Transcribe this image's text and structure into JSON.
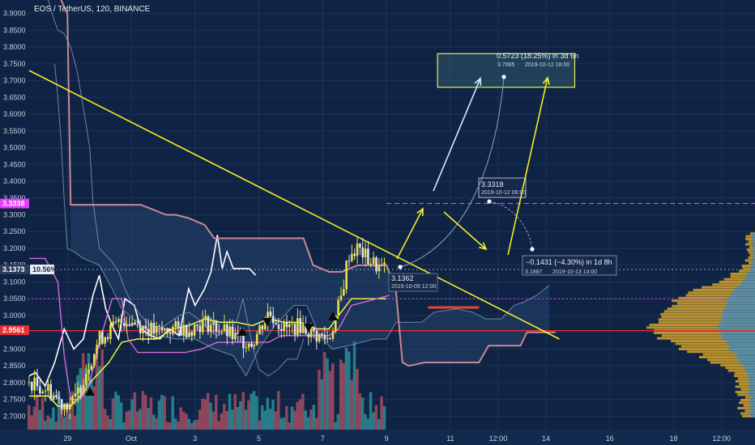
{
  "header": {
    "symbol_title": "EOS / TetherUS, 120, BINANCE"
  },
  "colors": {
    "background": "#0f2344",
    "grid": "#1c3358",
    "candle_up": "#e8df4a",
    "candle_down": "#dfe3ea",
    "price_line": "#ffffff",
    "tenkan": "#ffff44",
    "kijun": "#d86bd8",
    "span_b": "#c78a92",
    "cloud_edge": "#8ea6bf",
    "trendline": "#f4ec2a",
    "volume_up": "#2a8c95",
    "volume_down": "#a34b5f",
    "support_red": "#e83030",
    "magenta_level": "#d640f2",
    "profile_gold": "#d6a52b",
    "profile_blue": "#3a8fd0"
  },
  "chart_data": {
    "type": "line",
    "title": "EOS / TetherUS, 120, BINANCE",
    "ylim": [
      2.66,
      3.94
    ],
    "y_ticks": [
      "3.9000",
      "3.8500",
      "3.8000",
      "3.7500",
      "3.7000",
      "3.6500",
      "3.6000",
      "3.5500",
      "3.5000",
      "3.4500",
      "3.4000",
      "3.3500",
      "3.3000",
      "3.2500",
      "3.2000",
      "3.1500",
      "3.1000",
      "3.0500",
      "3.0000",
      "2.9500",
      "2.9000",
      "2.8500",
      "2.8000",
      "2.7500",
      "2.7000"
    ],
    "y_tick_values": [
      3.9,
      3.85,
      3.8,
      3.75,
      3.7,
      3.65,
      3.6,
      3.55,
      3.5,
      3.45,
      3.4,
      3.35,
      3.3,
      3.25,
      3.2,
      3.15,
      3.1,
      3.05,
      3.0,
      2.95,
      2.9,
      2.85,
      2.8,
      2.75,
      2.7
    ],
    "x_ticks": [
      "29",
      "Oct",
      "3",
      "5",
      "7",
      "9",
      "11",
      "12:00",
      "14",
      "16",
      "18",
      "12:00"
    ],
    "x_tick_days": [
      -2,
      0,
      2,
      4,
      6,
      8,
      10,
      11.5,
      13,
      15,
      17,
      18.5
    ],
    "xlim_days": [
      -3.25,
      19.55
    ],
    "price_labels": [
      {
        "text": "3.3338",
        "value": 3.3338,
        "color": "#e040fb"
      },
      {
        "text": "3.1373",
        "value": 3.1373,
        "color": "#2a3d5c"
      },
      {
        "text": "2.9561",
        "value": 2.9561,
        "color": "#e83030"
      }
    ],
    "current_pct_label": "10.56%",
    "series": [
      {
        "name": "",
        "role": "close-line",
        "points": [
          [
            -3.2,
            2.82
          ],
          [
            -3.0,
            2.83
          ],
          [
            -2.7,
            2.79
          ],
          [
            -2.4,
            2.86
          ],
          [
            -2.1,
            2.96
          ],
          [
            -1.8,
            2.9
          ],
          [
            -1.5,
            2.93
          ],
          [
            -1.2,
            3.06
          ],
          [
            -1.0,
            3.12
          ],
          [
            -0.8,
            3.02
          ],
          [
            -0.6,
            2.97
          ],
          [
            -0.4,
            2.93
          ],
          [
            -0.2,
            3.05
          ],
          [
            0.1,
            3.03
          ],
          [
            0.3,
            2.96
          ],
          [
            0.6,
            2.94
          ],
          [
            0.9,
            2.93
          ],
          [
            1.2,
            2.96
          ],
          [
            1.5,
            2.94
          ],
          [
            1.8,
            3.08
          ],
          [
            2.0,
            3.03
          ],
          [
            2.3,
            3.08
          ],
          [
            2.5,
            3.13
          ],
          [
            2.7,
            3.24
          ],
          [
            2.85,
            3.14
          ],
          [
            3.0,
            3.19
          ],
          [
            3.2,
            3.14
          ],
          [
            3.4,
            3.14
          ],
          [
            3.7,
            3.14
          ],
          [
            3.9,
            3.12
          ]
        ]
      },
      {
        "name": "",
        "role": "tenkan",
        "points": [
          [
            -3.2,
            2.76
          ],
          [
            -2.6,
            2.76
          ],
          [
            -2.3,
            2.73
          ],
          [
            -1.9,
            2.73
          ],
          [
            -1.6,
            2.76
          ],
          [
            -1.2,
            2.81
          ],
          [
            -0.7,
            2.86
          ],
          [
            -0.3,
            2.92
          ],
          [
            0.2,
            2.93
          ],
          [
            0.8,
            2.93
          ],
          [
            1.3,
            2.96
          ],
          [
            1.8,
            2.97
          ],
          [
            2.3,
            2.99
          ],
          [
            2.8,
            2.98
          ],
          [
            3.3,
            2.98
          ],
          [
            3.8,
            2.97
          ],
          [
            4.3,
            2.99
          ],
          [
            4.8,
            2.98
          ],
          [
            5.3,
            2.98
          ],
          [
            5.8,
            2.96
          ],
          [
            6.2,
            2.96
          ],
          [
            6.5,
            3.0
          ],
          [
            6.9,
            3.05
          ],
          [
            7.3,
            3.05
          ],
          [
            7.6,
            3.05
          ],
          [
            8.0,
            3.05
          ]
        ]
      },
      {
        "name": "",
        "role": "kijun",
        "points": [
          [
            -3.2,
            3.17
          ],
          [
            -2.7,
            3.17
          ],
          [
            -2.3,
            3.1
          ],
          [
            -2.1,
            2.88
          ],
          [
            -1.9,
            2.75
          ],
          [
            -1.6,
            2.75
          ],
          [
            -1.3,
            2.8
          ],
          [
            -1.0,
            2.92
          ],
          [
            -0.6,
            3.05
          ],
          [
            -0.3,
            3.05
          ],
          [
            -0.1,
            2.93
          ],
          [
            0.2,
            2.89
          ],
          [
            0.7,
            2.89
          ],
          [
            1.2,
            2.89
          ],
          [
            1.7,
            2.89
          ],
          [
            2.2,
            2.9
          ],
          [
            2.7,
            2.92
          ],
          [
            3.3,
            2.92
          ],
          [
            3.8,
            2.92
          ],
          [
            4.3,
            2.92
          ],
          [
            4.7,
            2.94
          ],
          [
            5.2,
            2.94
          ],
          [
            5.7,
            2.94
          ],
          [
            6.2,
            2.94
          ],
          [
            6.5,
            2.96
          ],
          [
            6.9,
            3.03
          ],
          [
            7.3,
            3.04
          ],
          [
            7.7,
            3.05
          ],
          [
            8.1,
            3.06
          ]
        ]
      },
      {
        "name": "",
        "role": "senkou-b",
        "points": [
          [
            -2.2,
            3.94
          ],
          [
            -2.0,
            3.9
          ],
          [
            -1.9,
            3.33
          ],
          [
            -0.5,
            3.33
          ],
          [
            0.3,
            3.33
          ],
          [
            1.1,
            3.3
          ],
          [
            1.4,
            3.3
          ],
          [
            1.8,
            3.29
          ],
          [
            2.3,
            3.27
          ],
          [
            2.6,
            3.23
          ],
          [
            3.5,
            3.23
          ],
          [
            4.3,
            3.23
          ],
          [
            5.4,
            3.23
          ],
          [
            5.7,
            3.15
          ],
          [
            6.2,
            3.13
          ],
          [
            6.6,
            3.13
          ],
          [
            7.1,
            3.15
          ],
          [
            7.5,
            3.15
          ],
          [
            8.0,
            3.15
          ],
          [
            8.3,
            3.07
          ],
          [
            8.5,
            2.86
          ],
          [
            8.7,
            2.85
          ],
          [
            9.2,
            2.86
          ],
          [
            9.8,
            2.86
          ],
          [
            10.4,
            2.86
          ],
          [
            10.9,
            2.86
          ],
          [
            11.2,
            2.91
          ],
          [
            11.7,
            2.91
          ],
          [
            12.2,
            2.91
          ],
          [
            12.4,
            2.95
          ],
          [
            12.8,
            2.95
          ],
          [
            13.3,
            2.95
          ]
        ]
      },
      {
        "name": "",
        "role": "senkou-a",
        "points": [
          [
            -2.4,
            3.75
          ],
          [
            -2.3,
            3.65
          ],
          [
            -2.2,
            3.52
          ],
          [
            -2.1,
            3.34
          ],
          [
            -2.0,
            3.2
          ],
          [
            -1.8,
            3.19
          ],
          [
            -1.5,
            3.17
          ],
          [
            -1.0,
            3.15
          ],
          [
            -0.6,
            3.08
          ],
          [
            -0.3,
            3.02
          ],
          [
            0.3,
            2.97
          ],
          [
            0.8,
            2.94
          ],
          [
            1.4,
            2.93
          ],
          [
            2.0,
            2.93
          ],
          [
            2.6,
            2.9
          ],
          [
            3.2,
            2.88
          ],
          [
            3.6,
            2.82
          ],
          [
            4.0,
            2.9
          ],
          [
            4.5,
            2.97
          ],
          [
            5.1,
            3.03
          ],
          [
            5.5,
            3.03
          ],
          [
            5.9,
            2.94
          ],
          [
            6.3,
            2.9
          ],
          [
            6.8,
            2.91
          ],
          [
            7.2,
            2.92
          ],
          [
            7.6,
            2.93
          ],
          [
            8.0,
            2.93
          ],
          [
            8.3,
            2.98
          ],
          [
            8.7,
            2.98
          ],
          [
            9.1,
            2.98
          ],
          [
            9.5,
            3.01
          ],
          [
            10.2,
            3.02
          ],
          [
            10.7,
            3.01
          ],
          [
            11.1,
            2.99
          ],
          [
            11.6,
            2.99
          ],
          [
            12.0,
            3.03
          ],
          [
            12.3,
            3.04
          ],
          [
            12.7,
            3.06
          ],
          [
            13.1,
            3.09
          ]
        ]
      },
      {
        "name": "",
        "role": "chikou",
        "points": [
          [
            -2.6,
            3.94
          ],
          [
            -2.45,
            3.89
          ],
          [
            -2.3,
            3.85
          ],
          [
            -2.1,
            3.84
          ],
          [
            -1.9,
            3.8
          ],
          [
            -1.7,
            3.73
          ],
          [
            -1.5,
            3.62
          ],
          [
            -1.3,
            3.5
          ],
          [
            -1.2,
            3.34
          ],
          [
            -1.0,
            3.2
          ],
          [
            -0.8,
            3.18
          ],
          [
            -0.6,
            3.16
          ],
          [
            -0.4,
            3.13
          ],
          [
            -0.2,
            3.08
          ],
          [
            0.0,
            3.04
          ],
          [
            0.3,
            3.0
          ],
          [
            0.6,
            2.97
          ],
          [
            0.9,
            2.96
          ],
          [
            1.2,
            2.98
          ],
          [
            1.5,
            3.0
          ],
          [
            1.8,
            3.01
          ],
          [
            2.1,
            2.99
          ],
          [
            2.4,
            2.96
          ],
          [
            2.7,
            2.94
          ],
          [
            3.0,
            2.95
          ],
          [
            3.3,
            2.98
          ],
          [
            3.5,
            3.05
          ],
          [
            3.8,
            2.91
          ],
          [
            4.0,
            2.84
          ],
          [
            4.3,
            2.82
          ],
          [
            4.6,
            2.84
          ],
          [
            4.9,
            2.87
          ],
          [
            5.2,
            2.87
          ],
          [
            5.4,
            2.93
          ]
        ]
      }
    ],
    "candles_range_days": [
      -3.2,
      8.0
    ],
    "trendlines": [
      {
        "from": [
          -3.2,
          3.73
        ],
        "to": [
          12.4,
          2.95
        ],
        "color": "#f4ec2a"
      }
    ],
    "levels": [
      {
        "value": 3.3338,
        "from_day": 8.0,
        "to_day": 19.55,
        "color": "#d640f2",
        "style": "dashed"
      },
      {
        "value": 3.05,
        "from_day": -3.25,
        "to_day": 19.55,
        "color": "#d640f2",
        "style": "dotted"
      },
      {
        "value": 2.955,
        "from_day": -3.25,
        "to_day": 19.55,
        "color": "#e83030",
        "style": "solid"
      },
      {
        "value": 3.137,
        "from_day": -3.25,
        "to_day": 19.55,
        "color": "#8ea6bf",
        "style": "dotted"
      },
      {
        "value": 3.024,
        "from_day": 9.3,
        "to_day": 10.9,
        "color": "#e8443c",
        "style": "solid-thick"
      }
    ],
    "target_box": {
      "x_days": [
        9.6,
        13.9
      ],
      "y": [
        3.68,
        3.78
      ]
    },
    "annotations": [
      {
        "label": "0.5723 (18.25%) in 3d 6h",
        "sub": "3.7085",
        "sub_date": "2019-10-12  18:00"
      },
      {
        "label": "3.3318",
        "sub": "2019-10-12 06:00"
      },
      {
        "label": "3.1362",
        "sub": "2019-10-09 12:00"
      },
      {
        "label": "−0.1431 (−4.30%) in 1d 8h",
        "sub": "3.1887",
        "sub_date": "2019-10-13  14:00"
      }
    ],
    "grid": true
  }
}
